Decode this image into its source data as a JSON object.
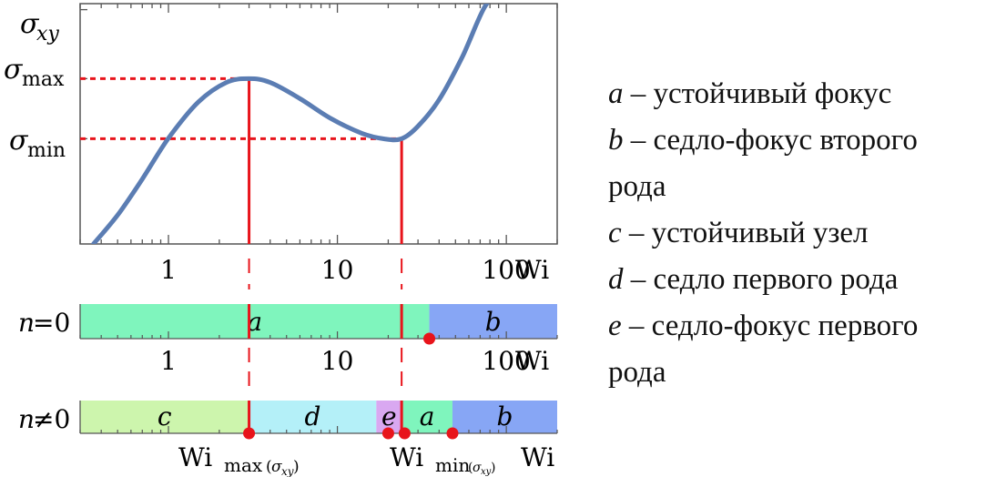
{
  "chart_data": {
    "type": "line",
    "x_scale": "log",
    "y_scale": "linear",
    "xlabel": "Wi",
    "ylabel": "σ",
    "y_axis_labels": {
      "sigma_xy": {
        "main": "σ",
        "sub": "xy"
      },
      "sigma_max": {
        "main": "σ",
        "sub": "max"
      },
      "sigma_min": {
        "main": "σ",
        "sub": "min"
      }
    },
    "x_ticks": [
      1,
      10,
      100
    ],
    "x_ticks_top": [
      "1",
      "10",
      "100"
    ],
    "x_ticks_middle": [
      "1",
      "10",
      "100"
    ],
    "xlim": [
      0.3,
      200
    ],
    "ylim": [
      0,
      10
    ],
    "curve_color": "#5b7db3",
    "guide_color": "#e8141b",
    "curve": {
      "x": [
        0.36,
        0.5,
        0.7,
        1.0,
        1.5,
        2.2,
        3.0,
        4.0,
        6.0,
        9.0,
        14.0,
        19.0,
        24.0,
        30.0,
        40.0,
        55.0,
        75.0,
        95.0
      ],
      "y": [
        0.0,
        1.2,
        2.7,
        4.4,
        5.9,
        6.72,
        6.88,
        6.72,
        6.05,
        5.25,
        4.6,
        4.37,
        4.38,
        4.9,
        6.0,
        7.8,
        9.9,
        10.5
      ]
    },
    "wi_max": 3.0,
    "wi_min": 24.0,
    "sigma_max": 6.88,
    "sigma_min": 4.38,
    "wi_max_label": {
      "main": "Wi",
      "sub": "max",
      "paren_open": "(",
      "sigma": "σ",
      "sigma_sub": "xy",
      "paren_close": ")"
    },
    "wi_min_label": {
      "main": "Wi",
      "sub": "min",
      "paren_open": "(",
      "sigma": "σ",
      "sigma_sub": "xy",
      "paren_close": ")"
    },
    "bars": [
      {
        "label_var": "n",
        "label_rest": "=0",
        "segments": [
          {
            "letter": "a",
            "from": 0.3,
            "to": 35,
            "color": "#7ff5bd"
          },
          {
            "letter": "b",
            "from": 35,
            "to": 200,
            "color": "#87a6f5"
          }
        ],
        "points": [
          35
        ]
      },
      {
        "label_var": "n",
        "label_rest": "≠0",
        "segments": [
          {
            "letter": "c",
            "from": 0.3,
            "to": 3.0,
            "color": "#cdf5ad"
          },
          {
            "letter": "d",
            "from": 3.0,
            "to": 17,
            "color": "#b4f0f8"
          },
          {
            "letter": "e",
            "from": 17,
            "to": 24,
            "color": "#d9a8f1"
          },
          {
            "letter": "a",
            "from": 24,
            "to": 48,
            "color": "#7ff5bd"
          },
          {
            "letter": "b",
            "from": 48,
            "to": 200,
            "color": "#87a6f5"
          }
        ],
        "points": [
          3.0,
          20,
          25,
          48
        ]
      }
    ]
  },
  "legend": [
    {
      "letter": "a",
      "text": " – устойчивый фокус"
    },
    {
      "letter": "b",
      "text": " – седло-фокус второго"
    },
    {
      "letter": "",
      "text": "рода"
    },
    {
      "letter": "c",
      "text": " – устойчивый узел"
    },
    {
      "letter": "d",
      "text": " – седло первого рода"
    },
    {
      "letter": "e",
      "text": " – седло-фокус первого"
    },
    {
      "letter": "",
      "text": "рода"
    }
  ]
}
